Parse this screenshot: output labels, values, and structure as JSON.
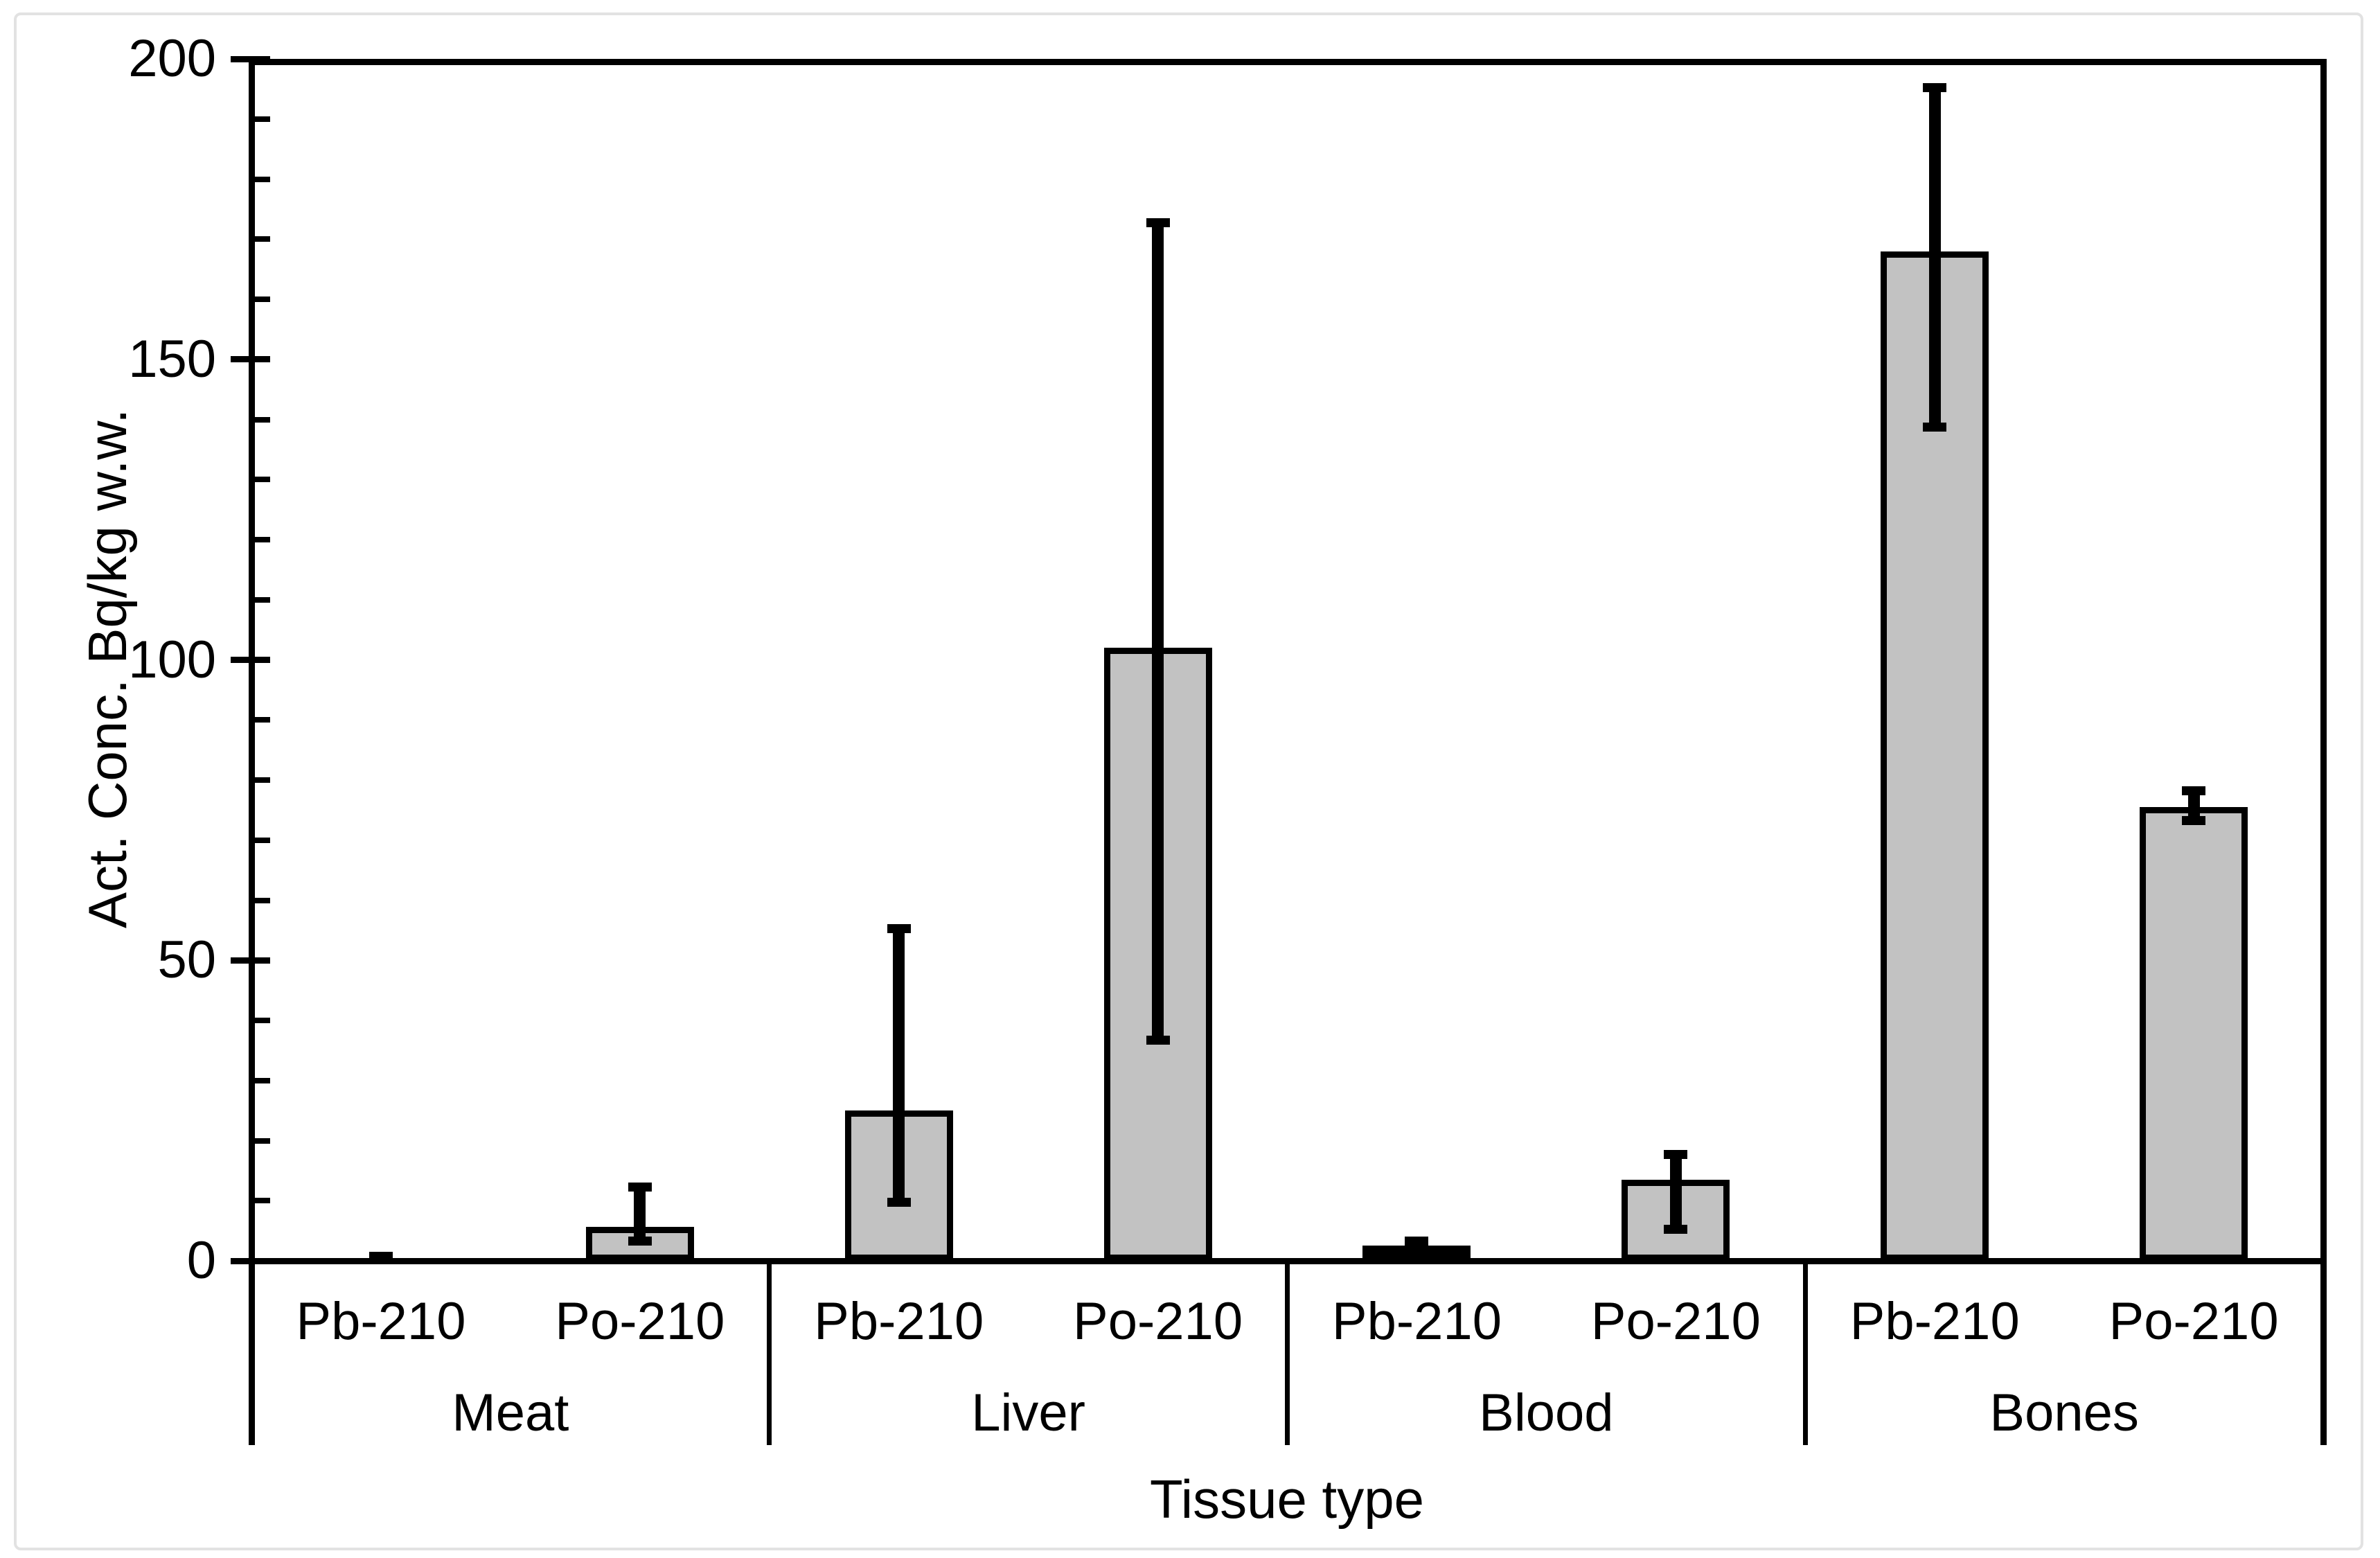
{
  "chart_data": {
    "type": "bar",
    "title": "",
    "xlabel": "Tissue type",
    "ylabel": "Act. Conc. Bq/kg w.w.",
    "ylim": [
      0,
      200
    ],
    "y_major_ticks": [
      0,
      50,
      100,
      150,
      200
    ],
    "y_minor_step": 10,
    "grid": false,
    "legend": "none",
    "bar_fill_color": "#c2c2c2",
    "bar_edge_color": "#000000",
    "error_bar_color": "#000000",
    "groups": [
      {
        "category": "Meat",
        "bars": [
          {
            "series": "Pb-210",
            "value": 0.5,
            "err_low": 0,
            "err_high": 1.2
          },
          {
            "series": "Po-210",
            "value": 5.7,
            "err_low": 2.5,
            "err_high": 13
          }
        ]
      },
      {
        "category": "Liver",
        "bars": [
          {
            "series": "Pb-210",
            "value": 25,
            "err_low": 9,
            "err_high": 56
          },
          {
            "series": "Po-210",
            "value": 102,
            "err_low": 36,
            "err_high": 173.5
          }
        ]
      },
      {
        "category": "Blood",
        "bars": [
          {
            "series": "Pb-210",
            "value": 2.5,
            "err_low": 1,
            "err_high": 4
          },
          {
            "series": "Po-210",
            "value": 13.5,
            "err_low": 4.5,
            "err_high": 18.5
          }
        ]
      },
      {
        "category": "Bones",
        "bars": [
          {
            "series": "Pb-210",
            "value": 168,
            "err_low": 138,
            "err_high": 196
          },
          {
            "series": "Po-210",
            "value": 75.5,
            "err_low": 72.5,
            "err_high": 79
          }
        ]
      }
    ]
  }
}
